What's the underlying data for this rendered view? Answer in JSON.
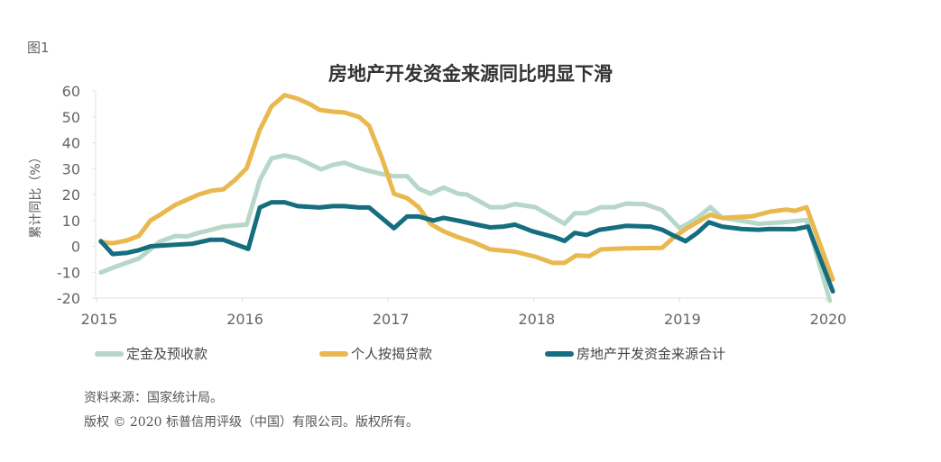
{
  "figure_label": "图1",
  "chart_data": {
    "type": "line",
    "title": "房地产开发资金来源同比明显下滑",
    "xlabel": "",
    "ylabel": "累计同比（%）",
    "xlim": [
      2015,
      2020
    ],
    "ylim": [
      -20,
      60
    ],
    "x_ticks": [
      "2015",
      "2016",
      "2017",
      "2018",
      "2019",
      "2020"
    ],
    "y_ticks": [
      "60",
      "50",
      "40",
      "30",
      "20",
      "10",
      "0",
      "-10",
      "-20"
    ],
    "grid": false,
    "legend_position": "bottom",
    "series": [
      {
        "name": "定金及预收款",
        "color": "#b7d7c8",
        "points": [
          [
            2015.03,
            -10.1
          ],
          [
            2015.12,
            -8.1
          ],
          [
            2015.29,
            -4.7
          ],
          [
            2015.37,
            -1.2
          ],
          [
            2015.43,
            1.7
          ],
          [
            2015.54,
            4.0
          ],
          [
            2015.62,
            3.8
          ],
          [
            2015.7,
            5.2
          ],
          [
            2015.79,
            6.4
          ],
          [
            2015.87,
            7.6
          ],
          [
            2016.03,
            8.4
          ],
          [
            2016.12,
            25.6
          ],
          [
            2016.2,
            34.0
          ],
          [
            2016.29,
            35.1
          ],
          [
            2016.38,
            34.0
          ],
          [
            2016.47,
            31.6
          ],
          [
            2016.54,
            29.7
          ],
          [
            2016.62,
            31.4
          ],
          [
            2016.7,
            32.3
          ],
          [
            2016.8,
            30.2
          ],
          [
            2016.87,
            29.1
          ],
          [
            2016.96,
            27.9
          ],
          [
            2017.04,
            27.1
          ],
          [
            2017.13,
            27.1
          ],
          [
            2017.21,
            22.3
          ],
          [
            2017.29,
            20.3
          ],
          [
            2017.38,
            22.7
          ],
          [
            2017.48,
            20.3
          ],
          [
            2017.54,
            20.0
          ],
          [
            2017.7,
            15.1
          ],
          [
            2017.79,
            15.1
          ],
          [
            2017.87,
            16.3
          ],
          [
            2018.01,
            15.1
          ],
          [
            2018.12,
            11.6
          ],
          [
            2018.21,
            8.7
          ],
          [
            2018.28,
            12.8
          ],
          [
            2018.36,
            12.8
          ],
          [
            2018.46,
            15.1
          ],
          [
            2018.55,
            15.1
          ],
          [
            2018.63,
            16.5
          ],
          [
            2018.76,
            16.3
          ],
          [
            2018.88,
            14.0
          ],
          [
            2019.0,
            7.0
          ],
          [
            2019.11,
            10.5
          ],
          [
            2019.21,
            15.1
          ],
          [
            2019.29,
            11.0
          ],
          [
            2019.42,
            9.9
          ],
          [
            2019.54,
            8.7
          ],
          [
            2019.71,
            9.3
          ],
          [
            2019.87,
            10.2
          ],
          [
            2020.03,
            -21.0
          ]
        ]
      },
      {
        "name": "个人按揭贷款",
        "color": "#e9b84e",
        "points": [
          [
            2015.03,
            1.7
          ],
          [
            2015.11,
            1.2
          ],
          [
            2015.21,
            2.3
          ],
          [
            2015.29,
            4.0
          ],
          [
            2015.37,
            10.0
          ],
          [
            2015.43,
            12.0
          ],
          [
            2015.54,
            16.0
          ],
          [
            2015.62,
            18.0
          ],
          [
            2015.7,
            20.0
          ],
          [
            2015.79,
            21.5
          ],
          [
            2015.87,
            22.0
          ],
          [
            2015.95,
            25.6
          ],
          [
            2016.03,
            30.2
          ],
          [
            2016.12,
            45.0
          ],
          [
            2016.2,
            54.0
          ],
          [
            2016.29,
            58.4
          ],
          [
            2016.38,
            57.0
          ],
          [
            2016.47,
            54.7
          ],
          [
            2016.53,
            52.7
          ],
          [
            2016.62,
            52.0
          ],
          [
            2016.7,
            51.7
          ],
          [
            2016.8,
            50.0
          ],
          [
            2016.87,
            46.5
          ],
          [
            2016.96,
            33.7
          ],
          [
            2017.04,
            20.3
          ],
          [
            2017.13,
            18.6
          ],
          [
            2017.21,
            15.1
          ],
          [
            2017.29,
            8.7
          ],
          [
            2017.38,
            5.8
          ],
          [
            2017.48,
            3.5
          ],
          [
            2017.58,
            1.7
          ],
          [
            2017.7,
            -1.2
          ],
          [
            2017.87,
            -2.1
          ],
          [
            2018.01,
            -4.0
          ],
          [
            2018.13,
            -6.4
          ],
          [
            2018.21,
            -6.4
          ],
          [
            2018.29,
            -3.5
          ],
          [
            2018.38,
            -3.8
          ],
          [
            2018.46,
            -1.2
          ],
          [
            2018.63,
            -0.8
          ],
          [
            2018.88,
            -0.6
          ],
          [
            2018.96,
            3.5
          ],
          [
            2019.05,
            7.0
          ],
          [
            2019.21,
            12.2
          ],
          [
            2019.29,
            11.0
          ],
          [
            2019.5,
            11.6
          ],
          [
            2019.62,
            13.4
          ],
          [
            2019.73,
            14.2
          ],
          [
            2019.79,
            13.7
          ],
          [
            2019.87,
            15.1
          ],
          [
            2020.05,
            -12.8
          ]
        ]
      },
      {
        "name": "房地产开发资金来源合计",
        "color": "#156e7f",
        "points": [
          [
            2015.03,
            2.0
          ],
          [
            2015.11,
            -3.0
          ],
          [
            2015.21,
            -2.5
          ],
          [
            2015.29,
            -1.5
          ],
          [
            2015.37,
            0.0
          ],
          [
            2015.5,
            0.5
          ],
          [
            2015.66,
            1.0
          ],
          [
            2015.78,
            2.5
          ],
          [
            2015.87,
            2.5
          ],
          [
            2016.04,
            -1.0
          ],
          [
            2016.12,
            15.0
          ],
          [
            2016.2,
            17.0
          ],
          [
            2016.29,
            17.0
          ],
          [
            2016.38,
            15.5
          ],
          [
            2016.53,
            15.0
          ],
          [
            2016.62,
            15.5
          ],
          [
            2016.7,
            15.5
          ],
          [
            2016.8,
            15.0
          ],
          [
            2016.87,
            15.0
          ],
          [
            2017.04,
            7.0
          ],
          [
            2017.13,
            11.5
          ],
          [
            2017.21,
            11.5
          ],
          [
            2017.31,
            10.0
          ],
          [
            2017.38,
            11.0
          ],
          [
            2017.48,
            9.9
          ],
          [
            2017.58,
            8.7
          ],
          [
            2017.7,
            7.3
          ],
          [
            2017.79,
            7.6
          ],
          [
            2017.87,
            8.4
          ],
          [
            2017.99,
            5.8
          ],
          [
            2018.14,
            3.5
          ],
          [
            2018.21,
            2.1
          ],
          [
            2018.28,
            5.2
          ],
          [
            2018.36,
            4.4
          ],
          [
            2018.45,
            6.4
          ],
          [
            2018.53,
            7.0
          ],
          [
            2018.63,
            7.9
          ],
          [
            2018.8,
            7.6
          ],
          [
            2018.88,
            6.4
          ],
          [
            2018.96,
            4.1
          ],
          [
            2019.04,
            2.0
          ],
          [
            2019.12,
            5.2
          ],
          [
            2019.2,
            9.3
          ],
          [
            2019.29,
            7.6
          ],
          [
            2019.42,
            6.7
          ],
          [
            2019.54,
            6.4
          ],
          [
            2019.62,
            6.7
          ],
          [
            2019.79,
            6.6
          ],
          [
            2019.88,
            7.6
          ],
          [
            2020.05,
            -17.4
          ]
        ]
      }
    ]
  },
  "footnotes": {
    "source": "资料来源：国家统计局。",
    "copyright": "版权 © 2020 标普信用评级（中国）有限公司。版权所有。"
  }
}
